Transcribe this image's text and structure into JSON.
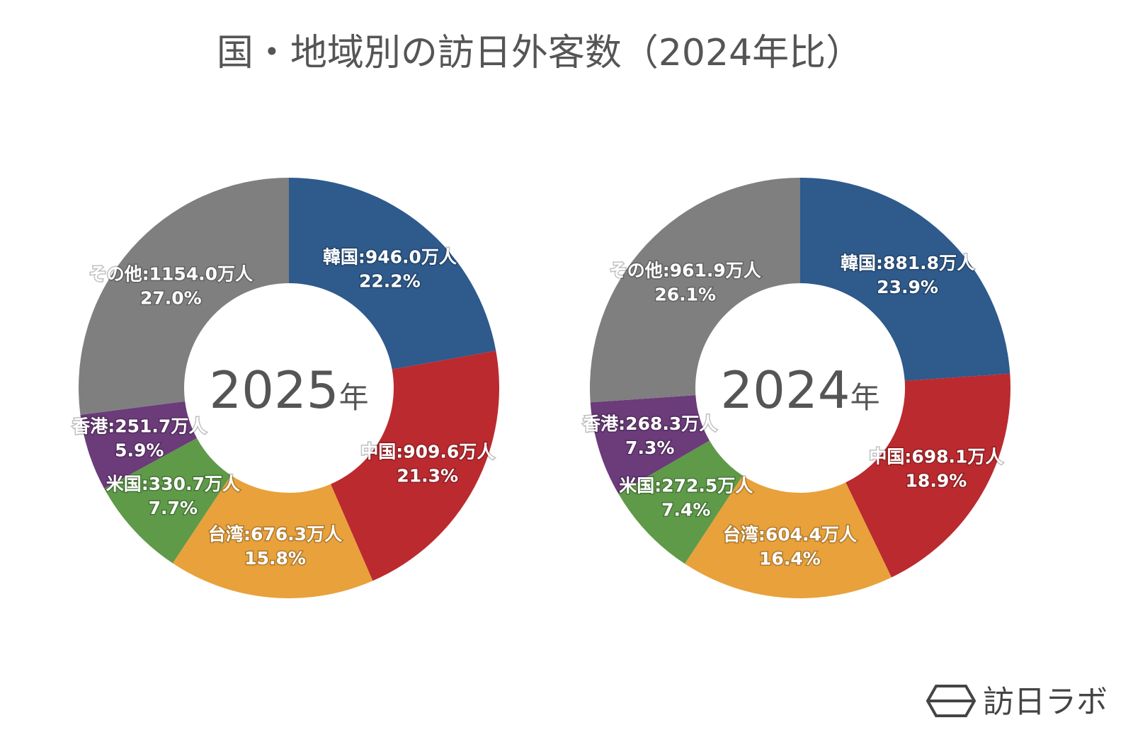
{
  "title": "国・地域別の訪日外客数（2024年比）",
  "brand": "訪日ラボ",
  "chart_data": [
    {
      "type": "donut",
      "center_year": "2025",
      "center_suffix": "年",
      "categories": [
        "韓国",
        "中国",
        "台湾",
        "米国",
        "香港",
        "その他"
      ],
      "values": [
        946.0,
        909.6,
        676.3,
        330.7,
        251.7,
        1154.0
      ],
      "value_labels": [
        "韓国:946.0万人",
        "中国:909.6万人",
        "台湾:676.3万人",
        "米国:330.7万人",
        "香港:251.7万人",
        "その他:1154.0万人"
      ],
      "shares": [
        22.2,
        21.3,
        15.8,
        7.7,
        5.9,
        27.0
      ],
      "share_labels": [
        "22.2%",
        "21.3%",
        "15.8%",
        "7.7%",
        "5.9%",
        "27.0%"
      ],
      "colors": [
        "#2e5a8c",
        "#bb2a2f",
        "#e8a13b",
        "#5e9a48",
        "#6b3b7a",
        "#7f7f7f"
      ]
    },
    {
      "type": "donut",
      "center_year": "2024",
      "center_suffix": "年",
      "categories": [
        "韓国",
        "中国",
        "台湾",
        "米国",
        "香港",
        "その他"
      ],
      "values": [
        881.8,
        698.1,
        604.4,
        272.5,
        268.3,
        961.9
      ],
      "value_labels": [
        "韓国:881.8万人",
        "中国:698.1万人",
        "台湾:604.4万人",
        "米国:272.5万人",
        "香港:268.3万人",
        "その他:961.9万人"
      ],
      "shares": [
        23.9,
        18.9,
        16.4,
        7.4,
        7.3,
        26.1
      ],
      "share_labels": [
        "23.9%",
        "18.9%",
        "16.4%",
        "7.4%",
        "7.3%",
        "26.1%"
      ],
      "colors": [
        "#2e5a8c",
        "#bb2a2f",
        "#e8a13b",
        "#5e9a48",
        "#6b3b7a",
        "#7f7f7f"
      ]
    }
  ]
}
